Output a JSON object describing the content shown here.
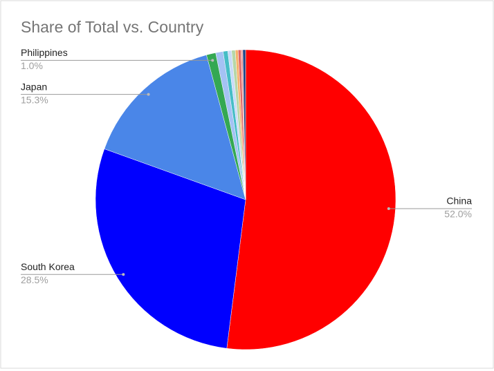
{
  "chart_data": {
    "type": "pie",
    "title": "Share of Total vs. Country",
    "categories": [
      "China",
      "South Korea",
      "Japan",
      "Philippines",
      null,
      null,
      null,
      null,
      null,
      null,
      null,
      null
    ],
    "values": [
      52.0,
      28.5,
      15.3,
      1.0,
      0.8,
      0.5,
      0.4,
      0.4,
      0.3,
      0.3,
      0.2,
      0.3
    ],
    "value_labels": [
      "52.0%",
      "28.5%",
      "15.3%",
      "1.0%",
      null,
      null,
      null,
      null,
      null,
      null,
      null,
      null
    ],
    "colors": [
      "#ff0000",
      "#0000ff",
      "#4a86e8",
      "#34a853",
      "#a4c2f4",
      "#46bdc6",
      "#c9daf8",
      "#b6d7a8",
      "#f6b26b",
      "#e06666",
      "#ea9999",
      "#1c4587"
    ]
  }
}
